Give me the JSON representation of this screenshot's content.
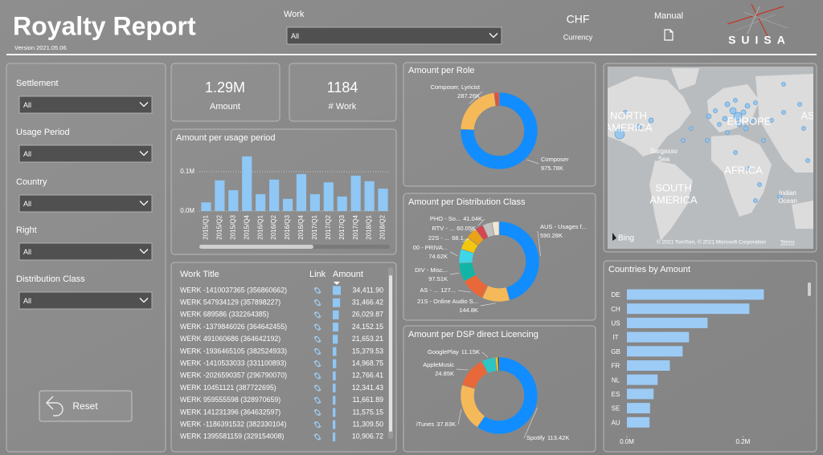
{
  "header": {
    "title": "Royalty Report",
    "version": "Version 2021.05.06",
    "work_label": "Work",
    "work_value": "All",
    "currency": "CHF",
    "currency_label": "Currency",
    "manual": "Manual",
    "logo": "SUISA"
  },
  "filters": [
    {
      "label": "Settlement",
      "value": "All"
    },
    {
      "label": "Usage Period",
      "value": "All"
    },
    {
      "label": "Country",
      "value": "All"
    },
    {
      "label": "Right",
      "value": "All"
    },
    {
      "label": "Distribution Class",
      "value": "All"
    }
  ],
  "reset": "Reset",
  "cards": [
    {
      "value": "1.29M",
      "label": "Amount"
    },
    {
      "value": "1184",
      "label": "# Work"
    }
  ],
  "chart_data": [
    {
      "type": "bar",
      "title": "Amount per usage period",
      "categories": [
        "2015/Q1",
        "2015/Q2",
        "2015/Q3",
        "2015/Q4",
        "2016/Q1",
        "2016/Q2",
        "2016/Q3",
        "2016/Q4",
        "2017/Q1",
        "2017/Q2",
        "2017/Q3",
        "2017/Q4",
        "2018/Q1",
        "2018/Q2"
      ],
      "values": [
        0.022,
        0.078,
        0.053,
        0.139,
        0.043,
        0.08,
        0.031,
        0.094,
        0.043,
        0.073,
        0.037,
        0.09,
        0.076,
        0.057
      ],
      "color": "#8fc7f5",
      "ylim": [
        0,
        0.15
      ],
      "yticks": [
        {
          "value": 0,
          "label": "0.0M"
        },
        {
          "value": 0.1,
          "label": "0.1M"
        }
      ],
      "grid": true
    },
    {
      "type": "pie",
      "title": "Amount per Role",
      "categories": [
        "Composer",
        "Composer, Lyricist",
        null
      ],
      "values": [
        975.78,
        287.26,
        27
      ],
      "value_labels": [
        "975.78K",
        "287.26K",
        null
      ],
      "colors": [
        "#118DFF",
        "#F6B95A",
        "#E0533A"
      ]
    },
    {
      "type": "pie",
      "title": "Amount per Distribution Class",
      "categories": [
        "AUS - Usages f...",
        "21S - Online Audio S...",
        "AS - ...",
        "DIV - Misc...",
        "00 - PRIVA...",
        "22S - ...",
        "RTV - ...",
        "PHO - So...",
        null,
        null
      ],
      "values": [
        590.28,
        144.8,
        127,
        97.51,
        74.62,
        68.1,
        60.05,
        41.04,
        50,
        37
      ],
      "value_labels": [
        "590.28K",
        "144.8K",
        "127...",
        "97.51K",
        "74.62K",
        "68.1...",
        "60.05K",
        "41.04K",
        null,
        null
      ],
      "colors": [
        "#118DFF",
        "#F6B95A",
        "#E8683A",
        "#12B5A5",
        "#3FD6E6",
        "#F2C80F",
        "#E8A317",
        "#D64550",
        "#C0C0C0",
        "#F0E6D2"
      ]
    },
    {
      "type": "pie",
      "title": "Amount per DSP direct Licencing",
      "categories": [
        "Spotify",
        "iTunes",
        "AppleMusic",
        "GooglePlay",
        null,
        null
      ],
      "values": [
        113.42,
        37.83,
        24.85,
        11.15,
        2,
        1
      ],
      "value_labels": [
        "113.42K",
        "37.83K",
        "24.85K",
        "11.15K",
        null,
        null
      ],
      "colors": [
        "#118DFF",
        "#F6B95A",
        "#E8683A",
        "#2EC4C4",
        "#F2C80F",
        "#1F3A6B"
      ]
    },
    {
      "type": "hbar",
      "title": "Countries by Amount",
      "categories": [
        "DE",
        "CH",
        "US",
        "IT",
        "GB",
        "FR",
        "NL",
        "ES",
        "SE",
        "AU"
      ],
      "values": [
        0.236,
        0.211,
        0.139,
        0.107,
        0.096,
        0.074,
        0.053,
        0.046,
        0.04,
        0.039
      ],
      "color": "#9ccbf5",
      "xlim": [
        0,
        0.27
      ],
      "xticks": [
        {
          "value": 0,
          "label": "0.0M"
        },
        {
          "value": 0.2,
          "label": "0.2M"
        }
      ]
    }
  ],
  "table": {
    "columns": [
      "Work Title",
      "Link",
      "Amount"
    ],
    "rows": [
      {
        "title": "WERK -1410037365 (356860662)",
        "amount": "34,411.90"
      },
      {
        "title": "WERK 547934129 (357898227)",
        "amount": "31,466.42"
      },
      {
        "title": "WERK 689586 (332264385)",
        "amount": "26,029.87"
      },
      {
        "title": "WERK -1379846026 (364642455)",
        "amount": "24,152.15"
      },
      {
        "title": "WERK 491060686 (364642192)",
        "amount": "21,653.21"
      },
      {
        "title": "WERK -1936465105 (382524933)",
        "amount": "15,379.53"
      },
      {
        "title": "WERK -1410533033 (331100893)",
        "amount": "14,968.75"
      },
      {
        "title": "WERK -2026590357 (296790070)",
        "amount": "12,766.41"
      },
      {
        "title": "WERK 10451121 (387722695)",
        "amount": "12,341.43"
      },
      {
        "title": "WERK 959555598 (328970659)",
        "amount": "11,661.89"
      },
      {
        "title": "WERK 141231396 (364632597)",
        "amount": "11,575.15"
      },
      {
        "title": "WERK -1186391532 (382330104)",
        "amount": "11,309.50"
      },
      {
        "title": "WERK 1395581159 (329154008)",
        "amount": "10,906.72"
      }
    ]
  },
  "map": {
    "labels": [
      {
        "lines": [
          "NORTH",
          "AMERICA"
        ]
      },
      {
        "lines": [
          "EUROPE"
        ]
      },
      {
        "lines": [
          "AS"
        ]
      },
      {
        "lines": [
          "Sargasso",
          "Sea"
        ]
      },
      {
        "lines": [
          "AFRICA"
        ]
      },
      {
        "lines": [
          "SOUTH",
          "AMERICA"
        ]
      },
      {
        "lines": [
          "Indian",
          "Ocean"
        ]
      }
    ],
    "brand": "Bing",
    "attribution": "© 2021 TomTom, © 2021 Microsoft Corporation",
    "terms": "Terms"
  }
}
